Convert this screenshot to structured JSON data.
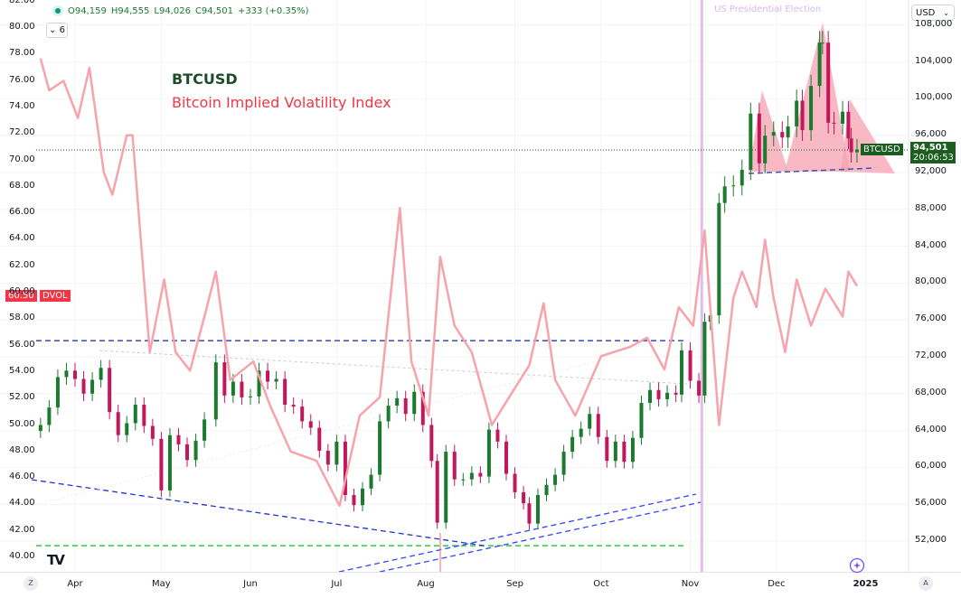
{
  "header": {
    "open": "O94,159",
    "high": "H94,555",
    "low": "L94,026",
    "close": "C94,501",
    "change": "+333 (+0.35%)",
    "indicator_count": "6",
    "collapse_icon": "chevron-down-icon"
  },
  "legend": {
    "symbol": "BTCUSD",
    "indicator": "Bitcoin Implied Volatility Index"
  },
  "currency_select": {
    "value": "USD"
  },
  "annotations": {
    "election": "US Presidential Election"
  },
  "price_tag": {
    "symbol": "BTCUSD",
    "price": "94,501",
    "countdown": "20:06:53"
  },
  "dvol_tag": {
    "value": "60.50",
    "name": "DVOL"
  },
  "colors": {
    "up": "#1b7a2e",
    "down": "#c2185b",
    "dvol": "#f7a3ab",
    "accent_red": "#f23645",
    "election": "#e1bee7",
    "support": "#3f51b5",
    "green_level": "#2ecc40"
  },
  "buttons": {
    "left_scale": "Z",
    "auto_scale": "A"
  },
  "chart_data": {
    "type": "line",
    "x_ticks": [
      "Apr",
      "May",
      "Jun",
      "Jul",
      "Aug",
      "Sep",
      "Oct",
      "Nov",
      "Dec",
      "2025"
    ],
    "right_axis": {
      "ticks": [
        "108,000",
        "104,000",
        "100,000",
        "96,000",
        "92,000",
        "88,000",
        "84,000",
        "80,000",
        "76,000",
        "72,000",
        "68,000",
        "64,000",
        "60,000",
        "56,000",
        "52,000"
      ],
      "range": [
        50800,
        109000
      ]
    },
    "left_axis": {
      "ticks": [
        "82.00",
        "80.00",
        "78.00",
        "76.00",
        "74.00",
        "72.00",
        "70.00",
        "68.00",
        "66.00",
        "64.00",
        "62.00",
        "60.00",
        "58.00",
        "56.00",
        "54.00",
        "52.00",
        "50.00",
        "48.00",
        "46.00",
        "44.00",
        "42.00",
        "40.00"
      ],
      "range": [
        39.8,
        82.1
      ]
    },
    "series": [
      {
        "name": "BTCUSD",
        "kind": "candlestick",
        "points": [
          [
            "2024-03-20",
            64600
          ],
          [
            "2024-03-23",
            66500
          ],
          [
            "2024-03-26",
            69800
          ],
          [
            "2024-03-29",
            70500
          ],
          [
            "2024-04-01",
            69600
          ],
          [
            "2024-04-04",
            68000
          ],
          [
            "2024-04-07",
            69500
          ],
          [
            "2024-04-10",
            70800
          ],
          [
            "2024-04-13",
            66000
          ],
          [
            "2024-04-16",
            63500
          ],
          [
            "2024-04-19",
            64800
          ],
          [
            "2024-04-22",
            66800
          ],
          [
            "2024-04-25",
            64500
          ],
          [
            "2024-04-28",
            63100
          ],
          [
            "2024-05-01",
            57500
          ],
          [
            "2024-05-04",
            63500
          ],
          [
            "2024-05-07",
            62500
          ],
          [
            "2024-05-10",
            60800
          ],
          [
            "2024-05-13",
            62900
          ],
          [
            "2024-05-16",
            65200
          ],
          [
            "2024-05-20",
            71400
          ],
          [
            "2024-05-23",
            67800
          ],
          [
            "2024-05-26",
            69300
          ],
          [
            "2024-05-29",
            67600
          ],
          [
            "2024-06-01",
            67700
          ],
          [
            "2024-06-04",
            70500
          ],
          [
            "2024-06-07",
            69300
          ],
          [
            "2024-06-10",
            69600
          ],
          [
            "2024-06-13",
            66800
          ],
          [
            "2024-06-16",
            66600
          ],
          [
            "2024-06-19",
            65000
          ],
          [
            "2024-06-22",
            64300
          ],
          [
            "2024-06-25",
            61800
          ],
          [
            "2024-06-28",
            60300
          ],
          [
            "2024-07-01",
            62800
          ],
          [
            "2024-07-04",
            57000
          ],
          [
            "2024-07-07",
            55900
          ],
          [
            "2024-07-10",
            57700
          ],
          [
            "2024-07-13",
            59200
          ],
          [
            "2024-07-16",
            65000
          ],
          [
            "2024-07-19",
            66700
          ],
          [
            "2024-07-22",
            67500
          ],
          [
            "2024-07-25",
            65800
          ],
          [
            "2024-07-28",
            68200
          ],
          [
            "2024-07-31",
            64600
          ],
          [
            "2024-08-03",
            60700
          ],
          [
            "2024-08-05",
            54000
          ],
          [
            "2024-08-08",
            61700
          ],
          [
            "2024-08-11",
            58700
          ],
          [
            "2024-08-14",
            58700
          ],
          [
            "2024-08-17",
            59400
          ],
          [
            "2024-08-20",
            59000
          ],
          [
            "2024-08-23",
            64100
          ],
          [
            "2024-08-26",
            62800
          ],
          [
            "2024-08-29",
            59300
          ],
          [
            "2024-09-01",
            57300
          ],
          [
            "2024-09-04",
            56100
          ],
          [
            "2024-09-06",
            53900
          ],
          [
            "2024-09-09",
            57000
          ],
          [
            "2024-09-12",
            58100
          ],
          [
            "2024-09-15",
            59200
          ],
          [
            "2024-09-18",
            61700
          ],
          [
            "2024-09-21",
            63300
          ],
          [
            "2024-09-24",
            64200
          ],
          [
            "2024-09-27",
            65800
          ],
          [
            "2024-09-30",
            63300
          ],
          [
            "2024-10-03",
            60700
          ],
          [
            "2024-10-06",
            62800
          ],
          [
            "2024-10-09",
            60600
          ],
          [
            "2024-10-12",
            63200
          ],
          [
            "2024-10-15",
            67000
          ],
          [
            "2024-10-18",
            68400
          ],
          [
            "2024-10-21",
            67400
          ],
          [
            "2024-10-24",
            68100
          ],
          [
            "2024-10-27",
            67900
          ],
          [
            "2024-10-29",
            72700
          ],
          [
            "2024-11-01",
            69400
          ],
          [
            "2024-11-04",
            67800
          ],
          [
            "2024-11-06",
            75800
          ],
          [
            "2024-11-08",
            76500
          ],
          [
            "2024-11-11",
            88700
          ],
          [
            "2024-11-13",
            90500
          ],
          [
            "2024-11-16",
            90600
          ],
          [
            "2024-11-19",
            92300
          ],
          [
            "2024-11-22",
            98400
          ],
          [
            "2024-11-25",
            93000
          ],
          [
            "2024-11-27",
            96000
          ],
          [
            "2024-11-30",
            96400
          ],
          [
            "2024-12-03",
            95800
          ],
          [
            "2024-12-05",
            97000
          ],
          [
            "2024-12-08",
            99800
          ],
          [
            "2024-12-10",
            96600
          ],
          [
            "2024-12-13",
            101400
          ],
          [
            "2024-12-16",
            106100
          ],
          [
            "2024-12-17",
            106100
          ],
          [
            "2024-12-19",
            97400
          ],
          [
            "2024-12-21",
            97300
          ],
          [
            "2024-12-24",
            98600
          ],
          [
            "2024-12-26",
            95700
          ],
          [
            "2024-12-27",
            94200
          ],
          [
            "2024-12-29",
            94501
          ]
        ]
      },
      {
        "name": "DVOL",
        "kind": "line",
        "points": [
          [
            "2024-03-20",
            77.7
          ],
          [
            "2024-03-23",
            75.3
          ],
          [
            "2024-03-28",
            76.0
          ],
          [
            "2024-04-02",
            73.2
          ],
          [
            "2024-04-06",
            77.0
          ],
          [
            "2024-04-11",
            69.1
          ],
          [
            "2024-04-14",
            67.4
          ],
          [
            "2024-04-19",
            71.9
          ],
          [
            "2024-04-21",
            71.9
          ],
          [
            "2024-04-24",
            63.7
          ],
          [
            "2024-04-27",
            55.5
          ],
          [
            "2024-05-02",
            61.0
          ],
          [
            "2024-05-06",
            55.5
          ],
          [
            "2024-05-11",
            54.1
          ],
          [
            "2024-05-16",
            58.2
          ],
          [
            "2024-05-20",
            61.6
          ],
          [
            "2024-05-25",
            53.4
          ],
          [
            "2024-06-02",
            54.8
          ],
          [
            "2024-06-08",
            51.4
          ],
          [
            "2024-06-15",
            48.0
          ],
          [
            "2024-06-24",
            47.3
          ],
          [
            "2024-07-02",
            43.9
          ],
          [
            "2024-07-09",
            50.7
          ],
          [
            "2024-07-16",
            52.1
          ],
          [
            "2024-07-23",
            66.4
          ],
          [
            "2024-07-27",
            54.8
          ],
          [
            "2024-08-02",
            50.7
          ],
          [
            "2024-08-06",
            62.7
          ],
          [
            "2024-08-11",
            57.5
          ],
          [
            "2024-08-17",
            55.5
          ],
          [
            "2024-08-24",
            50.0
          ],
          [
            "2024-08-30",
            52.1
          ],
          [
            "2024-09-06",
            54.5
          ],
          [
            "2024-09-11",
            59.2
          ],
          [
            "2024-09-15",
            53.4
          ],
          [
            "2024-09-22",
            50.7
          ],
          [
            "2024-10-01",
            55.2
          ],
          [
            "2024-10-11",
            55.9
          ],
          [
            "2024-10-17",
            56.6
          ],
          [
            "2024-10-23",
            54.2
          ],
          [
            "2024-10-28",
            58.9
          ],
          [
            "2024-11-02",
            57.5
          ],
          [
            "2024-11-06",
            64.7
          ],
          [
            "2024-11-11",
            50.0
          ],
          [
            "2024-11-16",
            59.6
          ],
          [
            "2024-11-19",
            61.6
          ],
          [
            "2024-11-24",
            58.9
          ],
          [
            "2024-11-27",
            64.0
          ],
          [
            "2024-11-30",
            59.6
          ],
          [
            "2024-12-04",
            55.5
          ],
          [
            "2024-12-08",
            61.0
          ],
          [
            "2024-12-13",
            57.5
          ],
          [
            "2024-12-18",
            60.3
          ],
          [
            "2024-12-24",
            58.2
          ],
          [
            "2024-12-26",
            61.6
          ],
          [
            "2024-12-29",
            60.5
          ]
        ]
      }
    ],
    "levels": {
      "resistance": 73750,
      "green_support": 51500,
      "election_date": "2024-11-05"
    },
    "grid": true
  }
}
